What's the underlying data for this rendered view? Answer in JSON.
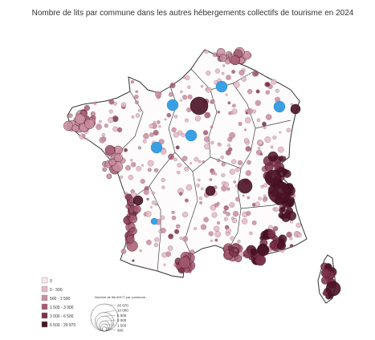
{
  "title": "Nombre de lits par commune dans les autres hébergements collectifs de tourisme en 2024",
  "legend": {
    "classes": [
      {
        "label": "0",
        "color": "#f3e6ea"
      },
      {
        "label": "0 - 500",
        "color": "#e3b9c5"
      },
      {
        "label": "500 - 1 500",
        "color": "#c98d9f"
      },
      {
        "label": "1 500 - 3 000",
        "color": "#a45a71"
      },
      {
        "label": "3 000 - 6 500",
        "color": "#7a3049"
      },
      {
        "label": "6 500 - 20 970",
        "color": "#4a1226"
      }
    ],
    "size_legend": {
      "title": "Nombre de lits AHCT par commune :",
      "values": [
        {
          "value": 20970,
          "label": "20 970"
        },
        {
          "value": 10000,
          "label": "10 000"
        },
        {
          "value": 6500,
          "label": "6 500"
        },
        {
          "value": 3000,
          "label": "3 000"
        },
        {
          "value": 1500,
          "label": "1 500"
        },
        500
      ]
    }
  }
}
